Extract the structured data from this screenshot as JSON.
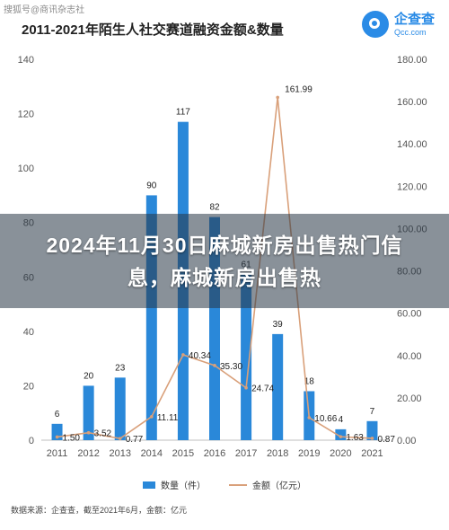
{
  "watermark": "搜狐号@商讯杂志社",
  "header": {
    "logo_name": "企查查",
    "logo_url": "Qcc.com"
  },
  "chart_data": {
    "type": "bar",
    "title": "2011-2021年陌生人社交赛道融资金额&数量",
    "categories": [
      "2011",
      "2012",
      "2013",
      "2014",
      "2015",
      "2016",
      "2017",
      "2018",
      "2019",
      "2020",
      "2021"
    ],
    "series": [
      {
        "name": "数量（件）",
        "type": "bar",
        "axis": "left",
        "color": "#2a88d9",
        "values": [
          6,
          20,
          23,
          90,
          117,
          82,
          61,
          39,
          18,
          4,
          7
        ],
        "labels": [
          "6",
          "20",
          "23",
          "90",
          "117",
          "82",
          "61",
          "39",
          "18",
          "4",
          "7"
        ]
      },
      {
        "name": "金额（亿元）",
        "type": "line",
        "axis": "right",
        "color": "#d9a07a",
        "values": [
          1.5,
          3.52,
          0.77,
          11.11,
          40.34,
          35.3,
          24.74,
          161.99,
          10.66,
          1.63,
          0.87
        ],
        "labels": [
          "1.50",
          "3.52",
          "0.77",
          "11.11",
          "40.34",
          "35.30",
          "24.74",
          "161.99",
          "10.66",
          "1.63",
          "0.87"
        ]
      }
    ],
    "y_left": {
      "range": [
        0,
        140
      ],
      "ticks": [
        "0",
        "20",
        "40",
        "60",
        "80",
        "100",
        "120",
        "140"
      ]
    },
    "y_right": {
      "range": [
        0,
        180
      ],
      "ticks": [
        "0.00",
        "20.00",
        "40.00",
        "60.00",
        "80.00",
        "100.00",
        "120.00",
        "140.00",
        "160.00",
        "180.00"
      ]
    },
    "legend_position": "bottom",
    "grid": false
  },
  "legend": {
    "bar_label": "数量（件）",
    "line_label": "金额（亿元）"
  },
  "source": "数据来源：企查查，截至2021年6月，金额：亿元",
  "overlay_text": "2024年11月30日麻城新房出售热门信息，麻城新房出售热"
}
